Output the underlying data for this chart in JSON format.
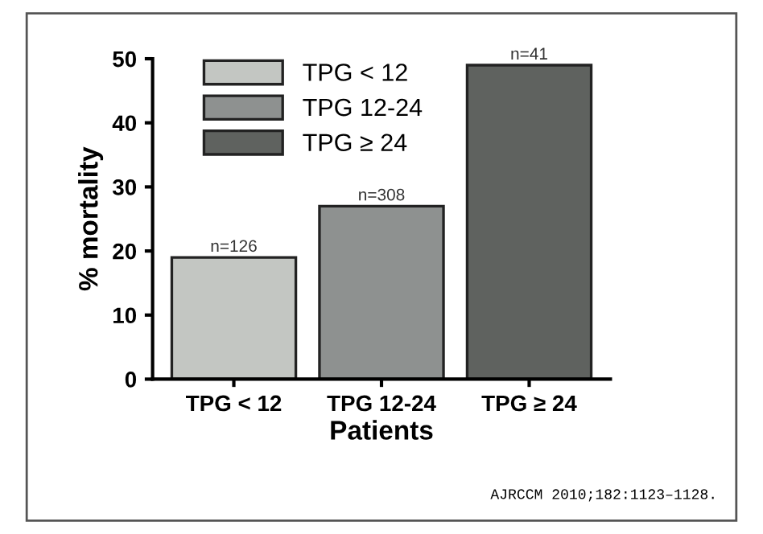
{
  "chart_data": {
    "type": "bar",
    "xlabel": "Patients",
    "ylabel": "% mortality",
    "categories": [
      "TPG < 12",
      "TPG 12-24",
      "TPG ≥ 24"
    ],
    "series": [
      {
        "name": "TPG < 12",
        "color": "#c3c6c2",
        "values": [
          19,
          null,
          null
        ]
      },
      {
        "name": "TPG 12-24",
        "color": "#8e9190",
        "values": [
          null,
          27,
          null
        ]
      },
      {
        "name": "TPG ≥ 24",
        "color": "#5f625f",
        "values": [
          null,
          null,
          49
        ]
      }
    ],
    "ylim": [
      0,
      50
    ],
    "yticks": [
      0,
      10,
      20,
      30,
      40,
      50
    ],
    "legend": "top left",
    "annotations": [
      {
        "text": "n=126",
        "x": "TPG < 12",
        "y": 19
      },
      {
        "text": "n=308",
        "x": "TPG 12-24",
        "y": 27
      },
      {
        "text": "n=41",
        "x": "TPG ≥ 24",
        "y": 49
      },
      "AJRCCM 2010;182:1123–1128."
    ]
  }
}
